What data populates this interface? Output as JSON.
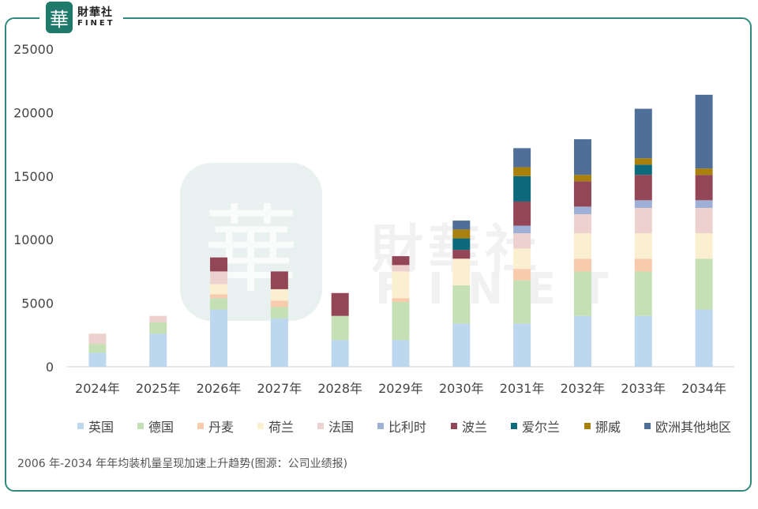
{
  "brand": {
    "seal_char": "華",
    "name_cn": "財華社",
    "name_en": "FINET"
  },
  "caption": "2006 年-2034 年年均装机量呈现加速上升趋势(图源：公司业绩报)",
  "chart_data": {
    "type": "bar",
    "stacked": true,
    "categories": [
      "2024年",
      "2025年",
      "2026年",
      "2027年",
      "2028年",
      "2029年",
      "2030年",
      "2031年",
      "2032年",
      "2033年",
      "2034年"
    ],
    "ylim": [
      0,
      25000
    ],
    "yticks": [
      0,
      5000,
      10000,
      15000,
      20000,
      25000
    ],
    "grid": false,
    "legend_position": "bottom",
    "series": [
      {
        "name": "英国",
        "color": "#bcd7ee",
        "values": [
          1100,
          2600,
          4500,
          3800,
          2100,
          2100,
          3400,
          3400,
          4000,
          4000,
          4500
        ]
      },
      {
        "name": "德国",
        "color": "#c5e0b4",
        "values": [
          700,
          900,
          900,
          900,
          1900,
          3000,
          3000,
          3400,
          3500,
          3500,
          4000
        ]
      },
      {
        "name": "丹麦",
        "color": "#f8cbad",
        "values": [
          0,
          0,
          300,
          500,
          0,
          300,
          0,
          900,
          1000,
          1000,
          0
        ]
      },
      {
        "name": "荷兰",
        "color": "#faefcf",
        "values": [
          0,
          0,
          800,
          900,
          0,
          2100,
          2100,
          1600,
          2000,
          2000,
          2000
        ]
      },
      {
        "name": "法国",
        "color": "#ecd1cf",
        "values": [
          800,
          500,
          1000,
          0,
          0,
          500,
          0,
          1200,
          1500,
          2000,
          2000
        ]
      },
      {
        "name": "比利时",
        "color": "#9fb0d6",
        "values": [
          0,
          0,
          0,
          0,
          0,
          0,
          0,
          600,
          600,
          600,
          600
        ]
      },
      {
        "name": "波兰",
        "color": "#934756",
        "values": [
          0,
          0,
          1100,
          1400,
          1800,
          700,
          700,
          1900,
          2000,
          2000,
          2000
        ]
      },
      {
        "name": "爱尔兰",
        "color": "#0d6a7c",
        "values": [
          0,
          0,
          0,
          0,
          0,
          0,
          900,
          2000,
          0,
          800,
          0
        ]
      },
      {
        "name": "挪威",
        "color": "#a98009",
        "values": [
          0,
          0,
          0,
          0,
          0,
          0,
          700,
          700,
          500,
          500,
          500
        ]
      },
      {
        "name": "欧洲其他地区",
        "color": "#4f6f99",
        "values": [
          0,
          0,
          0,
          0,
          0,
          0,
          700,
          1500,
          2800,
          3900,
          5800
        ]
      }
    ]
  }
}
